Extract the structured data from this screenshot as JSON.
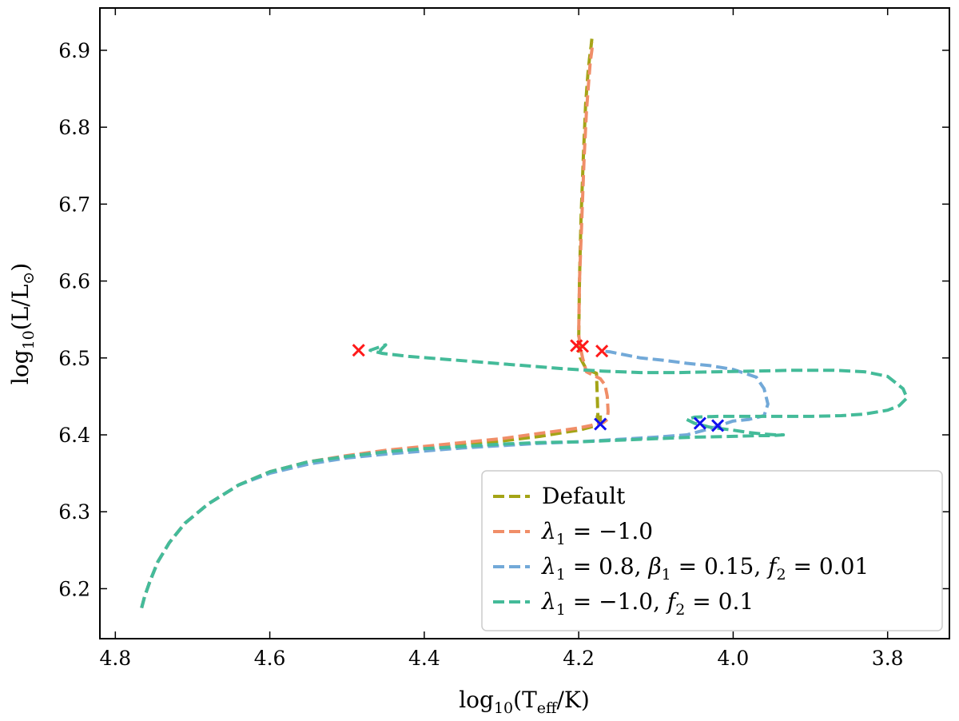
{
  "chart_data": {
    "type": "line",
    "title": "",
    "xlabel": "log10(Teff/K)",
    "ylabel": "log10(L/L⊙)",
    "xlabel_parts": {
      "pre": "log",
      "sub": "10",
      "mid": "(T",
      "sub2": "eff",
      "post": "/K)"
    },
    "ylabel_parts": {
      "pre": "log",
      "sub": "10",
      "mid": "(L/L",
      "sub2": "⊙",
      "post": ")"
    },
    "xlim": [
      4.82,
      3.72
    ],
    "ylim": [
      6.135,
      6.955
    ],
    "x_inverted": true,
    "xticks": [
      4.8,
      4.6,
      4.4,
      4.2,
      4.0,
      3.8
    ],
    "yticks": [
      6.2,
      6.3,
      6.4,
      6.5,
      6.6,
      6.7,
      6.8,
      6.9
    ],
    "legend_position": "lower-right",
    "series": [
      {
        "name": "Default",
        "legend_parts": [
          {
            "t": "Default",
            "i": false
          }
        ],
        "color": "#a4a416",
        "x": [
          4.766,
          4.762,
          4.755,
          4.745,
          4.73,
          4.71,
          4.68,
          4.64,
          4.6,
          4.55,
          4.5,
          4.45,
          4.4,
          4.35,
          4.3,
          4.25,
          4.22,
          4.2,
          4.185,
          4.178,
          4.173,
          4.172,
          4.172,
          4.172,
          4.174,
          4.176,
          4.175,
          4.177,
          4.19,
          4.198,
          4.2,
          4.199,
          4.197,
          4.194,
          4.191,
          4.188,
          4.186,
          4.184,
          4.183
        ],
        "y": [
          6.175,
          6.19,
          6.21,
          6.235,
          6.26,
          6.285,
          6.31,
          6.335,
          6.352,
          6.365,
          6.372,
          6.378,
          6.383,
          6.387,
          6.392,
          6.398,
          6.403,
          6.406,
          6.41,
          6.412,
          6.414,
          6.418,
          6.422,
          6.426,
          6.428,
          6.424,
          6.42,
          6.48,
          6.485,
          6.5,
          6.52,
          6.6,
          6.68,
          6.76,
          6.83,
          6.87,
          6.89,
          6.905,
          6.915
        ]
      },
      {
        "name": "λ1 = −1.0",
        "legend_parts": [
          {
            "t": "λ",
            "i": true
          },
          {
            "t": "1",
            "sub": true
          },
          {
            "t": " = −1.0",
            "i": false
          }
        ],
        "color": "#f08e68",
        "x": [
          4.766,
          4.762,
          4.755,
          4.745,
          4.73,
          4.71,
          4.68,
          4.64,
          4.6,
          4.55,
          4.5,
          4.45,
          4.4,
          4.35,
          4.3,
          4.25,
          4.22,
          4.2,
          4.185,
          4.178,
          4.168,
          4.163,
          4.162,
          4.163,
          4.166,
          4.172,
          4.182,
          4.19,
          4.195,
          4.198,
          4.2,
          4.199,
          4.196,
          4.193,
          4.19,
          4.187,
          4.185,
          4.183,
          4.182
        ],
        "y": [
          6.175,
          6.19,
          6.21,
          6.235,
          6.26,
          6.285,
          6.31,
          6.335,
          6.352,
          6.365,
          6.373,
          6.38,
          6.385,
          6.39,
          6.395,
          6.402,
          6.406,
          6.409,
          6.412,
          6.414,
          6.416,
          6.42,
          6.43,
          6.45,
          6.465,
          6.473,
          6.478,
          6.482,
          6.5,
          6.515,
          6.53,
          6.6,
          6.68,
          6.76,
          6.82,
          6.86,
          6.885,
          6.9,
          6.91
        ]
      },
      {
        "name": "λ1 = 0.8, β1 = 0.15, f2 = 0.01",
        "legend_parts": [
          {
            "t": "λ",
            "i": true
          },
          {
            "t": "1",
            "sub": true
          },
          {
            "t": " = 0.8, ",
            "i": false
          },
          {
            "t": "β",
            "i": true
          },
          {
            "t": "1",
            "sub": true
          },
          {
            "t": " = 0.15, ",
            "i": false
          },
          {
            "t": "f",
            "i": true
          },
          {
            "t": "2",
            "sub": true
          },
          {
            "t": " = 0.01",
            "i": false
          }
        ],
        "color": "#72a9d8",
        "x": [
          4.766,
          4.762,
          4.755,
          4.745,
          4.73,
          4.71,
          4.68,
          4.64,
          4.6,
          4.55,
          4.5,
          4.45,
          4.4,
          4.35,
          4.3,
          4.25,
          4.2,
          4.15,
          4.1,
          4.06,
          4.03,
          4.0,
          3.98,
          3.96,
          3.955,
          3.96,
          3.97,
          3.985,
          4.0,
          4.03,
          4.06,
          4.09,
          4.12,
          4.145,
          4.16,
          4.17
        ],
        "y": [
          6.175,
          6.19,
          6.21,
          6.235,
          6.26,
          6.285,
          6.31,
          6.335,
          6.35,
          6.362,
          6.37,
          6.375,
          6.379,
          6.383,
          6.386,
          6.389,
          6.391,
          6.394,
          6.397,
          6.4,
          6.408,
          6.418,
          6.42,
          6.425,
          6.44,
          6.46,
          6.475,
          6.48,
          6.485,
          6.49,
          6.493,
          6.497,
          6.5,
          6.505,
          6.508,
          6.509
        ]
      },
      {
        "name": "λ1 = −1.0, f2 = 0.1",
        "legend_parts": [
          {
            "t": "λ",
            "i": true
          },
          {
            "t": "1",
            "sub": true
          },
          {
            "t": " = −1.0, ",
            "i": false
          },
          {
            "t": "f",
            "i": true
          },
          {
            "t": "2",
            "sub": true
          },
          {
            "t": " = 0.1",
            "i": false
          }
        ],
        "color": "#44bb99",
        "x": [
          4.766,
          4.762,
          4.755,
          4.745,
          4.73,
          4.71,
          4.68,
          4.64,
          4.6,
          4.55,
          4.5,
          4.45,
          4.4,
          4.35,
          4.3,
          4.25,
          4.2,
          4.15,
          4.1,
          4.05,
          4.0,
          3.97,
          3.95,
          3.935,
          3.945,
          3.96,
          3.98,
          4.0,
          4.03,
          4.05,
          4.06,
          4.05,
          4.02,
          3.98,
          3.94,
          3.9,
          3.86,
          3.83,
          3.8,
          3.785,
          3.775,
          3.78,
          3.79,
          3.8,
          3.83,
          3.87,
          3.92,
          3.97,
          4.02,
          4.07,
          4.12,
          4.17,
          4.22,
          4.27,
          4.32,
          4.37,
          4.42,
          4.455,
          4.47,
          4.45,
          4.455,
          4.46
        ],
        "y": [
          6.175,
          6.19,
          6.21,
          6.235,
          6.26,
          6.285,
          6.31,
          6.335,
          6.352,
          6.365,
          6.372,
          6.378,
          6.382,
          6.385,
          6.388,
          6.39,
          6.391,
          6.393,
          6.395,
          6.397,
          6.398,
          6.399,
          6.399,
          6.4,
          6.4,
          6.401,
          6.403,
          6.406,
          6.41,
          6.415,
          6.42,
          6.423,
          6.424,
          6.424,
          6.424,
          6.424,
          6.425,
          6.427,
          6.432,
          6.438,
          6.448,
          6.46,
          6.468,
          6.476,
          6.482,
          6.484,
          6.484,
          6.483,
          6.482,
          6.481,
          6.481,
          6.483,
          6.486,
          6.49,
          6.494,
          6.498,
          6.502,
          6.506,
          6.51,
          6.517,
          6.512,
          6.505
        ]
      }
    ],
    "markers": [
      {
        "name": "red-cross-1",
        "color": "#ff1a1a",
        "x": 4.485,
        "y": 6.51
      },
      {
        "name": "red-cross-2",
        "color": "#ff1a1a",
        "x": 4.203,
        "y": 6.516
      },
      {
        "name": "red-cross-3",
        "color": "#ff1a1a",
        "x": 4.195,
        "y": 6.515
      },
      {
        "name": "red-cross-4",
        "color": "#ff1a1a",
        "x": 4.17,
        "y": 6.509
      },
      {
        "name": "blue-cross-1",
        "color": "#1010f0",
        "x": 4.172,
        "y": 6.414
      },
      {
        "name": "blue-cross-2",
        "color": "#1010f0",
        "x": 4.043,
        "y": 6.415
      },
      {
        "name": "blue-cross-3",
        "color": "#1010f0",
        "x": 4.02,
        "y": 6.412
      }
    ]
  }
}
